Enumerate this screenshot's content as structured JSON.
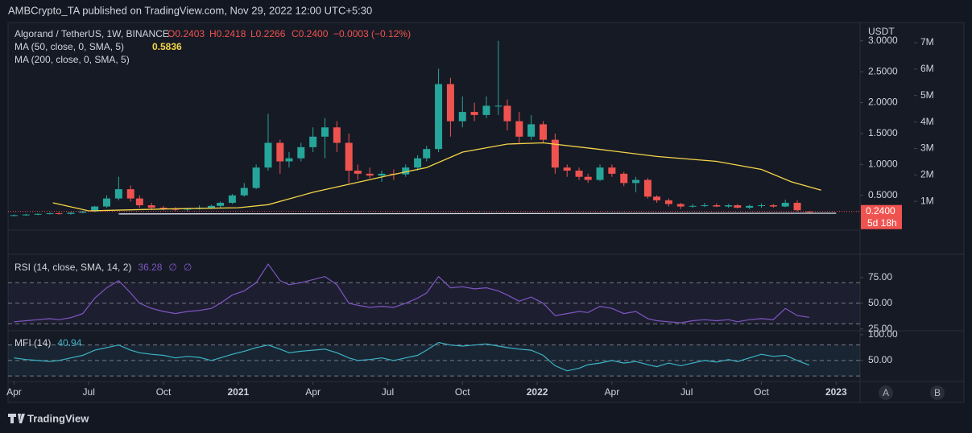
{
  "header": {
    "publisher": "AMBCrypto_TA published on TradingView.com, Nov 29, 2022 12:00 UTC+5:30",
    "brand": "TradingView",
    "buttons": [
      "A",
      "B"
    ]
  },
  "chart_data": [
    {
      "type": "candlestick",
      "title": "Algorand / TetherUS, 1W, BINANCE",
      "ohlc_legend": [
        "O0.2403",
        "H0.2418",
        "L0.2266",
        "C0.2400"
      ],
      "change": "−0.0003 (−0.12%)",
      "up_color": "#26a69a",
      "down_color": "#ef5350",
      "x": [
        2020.25,
        2020.29,
        2020.33,
        2020.37,
        2020.4,
        2020.44,
        2020.48,
        2020.52,
        2020.56,
        2020.6,
        2020.64,
        2020.67,
        2020.71,
        2020.75,
        2020.79,
        2020.83,
        2020.87,
        2020.91,
        2020.94,
        2020.98,
        2021.02,
        2021.06,
        2021.1,
        2021.14,
        2021.17,
        2021.21,
        2021.25,
        2021.29,
        2021.33,
        2021.37,
        2021.4,
        2021.44,
        2021.48,
        2021.52,
        2021.56,
        2021.6,
        2021.63,
        2021.67,
        2021.71,
        2021.75,
        2021.79,
        2021.83,
        2021.87,
        2021.9,
        2021.94,
        2021.98,
        2022.02,
        2022.06,
        2022.1,
        2022.14,
        2022.17,
        2022.21,
        2022.25,
        2022.29,
        2022.33,
        2022.37,
        2022.4,
        2022.44,
        2022.48,
        2022.52,
        2022.56,
        2022.6,
        2022.64,
        2022.67,
        2022.71,
        2022.75,
        2022.79,
        2022.83,
        2022.87,
        2022.91
      ],
      "open": [
        0.17,
        0.18,
        0.19,
        0.2,
        0.21,
        0.2,
        0.22,
        0.24,
        0.32,
        0.45,
        0.6,
        0.45,
        0.34,
        0.3,
        0.28,
        0.27,
        0.29,
        0.3,
        0.33,
        0.38,
        0.5,
        0.62,
        0.95,
        1.35,
        1.05,
        1.1,
        1.28,
        1.45,
        1.6,
        1.35,
        0.9,
        0.85,
        0.82,
        0.85,
        0.84,
        0.95,
        1.1,
        1.25,
        2.3,
        1.7,
        1.85,
        1.8,
        1.95,
        1.95,
        1.7,
        1.45,
        1.65,
        1.4,
        0.95,
        0.9,
        0.8,
        0.75,
        0.95,
        0.85,
        0.7,
        0.75,
        0.48,
        0.42,
        0.36,
        0.32,
        0.33,
        0.34,
        0.32,
        0.34,
        0.3,
        0.33,
        0.34,
        0.32,
        0.38,
        0.2403
      ],
      "high": [
        0.19,
        0.2,
        0.21,
        0.22,
        0.23,
        0.23,
        0.25,
        0.33,
        0.5,
        0.8,
        0.66,
        0.5,
        0.38,
        0.33,
        0.31,
        0.3,
        0.34,
        0.35,
        0.4,
        0.52,
        0.7,
        1.0,
        1.82,
        1.4,
        1.2,
        1.35,
        1.6,
        1.75,
        1.7,
        1.5,
        1.0,
        0.95,
        0.9,
        0.92,
        1.0,
        1.15,
        1.3,
        2.55,
        2.4,
        2.1,
        2.0,
        2.1,
        3.0,
        2.05,
        1.85,
        1.8,
        1.7,
        1.5,
        1.0,
        0.95,
        0.85,
        1.0,
        1.0,
        0.88,
        0.8,
        0.78,
        0.5,
        0.45,
        0.38,
        0.36,
        0.38,
        0.37,
        0.36,
        0.36,
        0.35,
        0.37,
        0.36,
        0.43,
        0.42,
        0.2418
      ],
      "low": [
        0.16,
        0.17,
        0.18,
        0.19,
        0.19,
        0.19,
        0.21,
        0.23,
        0.3,
        0.42,
        0.4,
        0.3,
        0.28,
        0.26,
        0.25,
        0.24,
        0.27,
        0.28,
        0.3,
        0.36,
        0.48,
        0.6,
        0.9,
        0.85,
        0.95,
        1.05,
        1.2,
        1.1,
        1.2,
        0.7,
        0.75,
        0.78,
        0.72,
        0.75,
        0.8,
        0.9,
        1.05,
        1.2,
        1.45,
        1.6,
        1.7,
        1.75,
        1.8,
        1.55,
        1.35,
        1.4,
        1.35,
        0.85,
        0.8,
        0.75,
        0.7,
        0.73,
        0.8,
        0.65,
        0.55,
        0.45,
        0.38,
        0.32,
        0.28,
        0.3,
        0.31,
        0.31,
        0.3,
        0.29,
        0.28,
        0.3,
        0.3,
        0.31,
        0.24,
        0.2266
      ],
      "close": [
        0.18,
        0.19,
        0.2,
        0.21,
        0.2,
        0.22,
        0.24,
        0.32,
        0.45,
        0.6,
        0.45,
        0.34,
        0.3,
        0.28,
        0.27,
        0.29,
        0.3,
        0.33,
        0.38,
        0.5,
        0.62,
        0.95,
        1.35,
        1.05,
        1.1,
        1.28,
        1.45,
        1.6,
        1.35,
        0.9,
        0.85,
        0.82,
        0.85,
        0.84,
        0.95,
        1.1,
        1.25,
        2.3,
        1.7,
        1.85,
        1.8,
        1.95,
        1.95,
        1.7,
        1.45,
        1.65,
        1.4,
        0.95,
        0.9,
        0.8,
        0.75,
        0.95,
        0.85,
        0.7,
        0.75,
        0.48,
        0.42,
        0.36,
        0.32,
        0.33,
        0.34,
        0.32,
        0.34,
        0.3,
        0.33,
        0.34,
        0.32,
        0.38,
        0.26,
        0.24
      ],
      "indicators": [
        {
          "name": "MA (50, close, 0, SMA, 5)",
          "color": "#f5d547",
          "x": [
            2020.38,
            2020.5,
            2020.75,
            2021.0,
            2021.1,
            2021.25,
            2021.5,
            2021.63,
            2021.75,
            2021.9,
            2022.02,
            2022.2,
            2022.4,
            2022.6,
            2022.75,
            2022.85,
            2022.95
          ],
          "values": [
            0.38,
            0.25,
            0.28,
            0.3,
            0.35,
            0.55,
            0.82,
            0.95,
            1.2,
            1.33,
            1.35,
            1.25,
            1.13,
            1.05,
            0.92,
            0.72,
            0.5836
          ]
        },
        {
          "name": "MA (200, close, 0, SMA, 5)",
          "color": "#e0e3eb",
          "x": [
            2020.6,
            2023.0
          ],
          "values": [
            0.2,
            0.21
          ]
        }
      ],
      "last_price": {
        "value": 0.24,
        "label": "0.2400",
        "countdown": "5d 18h"
      },
      "y_axis_unit": "USDT",
      "ylim": [
        -0.05,
        3.27
      ],
      "yticks": [
        {
          "value": 0.5,
          "label": "0.5000"
        },
        {
          "value": 1,
          "label": "1.0000"
        },
        {
          "value": 1.5,
          "label": "1.5000"
        },
        {
          "value": 2,
          "label": "2.0000"
        },
        {
          "value": 2.5,
          "label": "2.5000"
        },
        {
          "value": 3,
          "label": "3.0000"
        }
      ],
      "y2lim": [
        -30000,
        7700000
      ],
      "y2ticks": [
        {
          "value": 1000000,
          "label": "1M"
        },
        {
          "value": 2000000,
          "label": "2M"
        },
        {
          "value": 3000000,
          "label": "3M"
        },
        {
          "value": 4000000,
          "label": "4M"
        },
        {
          "value": 5000000,
          "label": "5M"
        },
        {
          "value": 6000000,
          "label": "6M"
        },
        {
          "value": 7000000,
          "label": "7M"
        }
      ],
      "xlim": [
        2020.23,
        2023.08
      ],
      "xticks": [
        {
          "value": 2020.25,
          "label": "Apr"
        },
        {
          "value": 2020.5,
          "label": "Jul"
        },
        {
          "value": 2020.75,
          "label": "Oct"
        },
        2021,
        {
          "value": 2021.25,
          "label": "Apr"
        },
        {
          "value": 2021.5,
          "label": "Jul"
        },
        {
          "value": 2021.75,
          "label": "Oct"
        },
        2022,
        {
          "value": 2022.25,
          "label": "Apr"
        },
        {
          "value": 2022.5,
          "label": "Jul"
        },
        {
          "value": 2022.75,
          "label": "Oct"
        },
        2023
      ]
    },
    {
      "type": "line",
      "name": "RSI (14, close, SMA, 14, 2)",
      "extra_labels": [
        "∅",
        "∅"
      ],
      "color": "#7e57c2",
      "values": [
        32,
        33,
        34,
        35,
        34,
        36,
        40,
        55,
        65,
        72,
        60,
        50,
        45,
        42,
        40,
        42,
        43,
        45,
        50,
        58,
        62,
        70,
        88,
        72,
        68,
        70,
        73,
        76,
        68,
        50,
        48,
        46,
        47,
        46,
        50,
        55,
        60,
        76,
        65,
        66,
        64,
        65,
        62,
        58,
        52,
        56,
        50,
        38,
        40,
        42,
        41,
        47,
        45,
        40,
        42,
        35,
        33,
        32,
        31,
        33,
        34,
        33,
        34,
        32,
        34,
        35,
        34,
        45,
        38,
        36.28
      ],
      "band_lines": [
        70,
        50,
        30
      ],
      "ylim": [
        24,
        96
      ],
      "yticks": [
        {
          "value": 75,
          "label": "75.00"
        },
        {
          "value": 50,
          "label": "50.00"
        },
        {
          "value": 25,
          "label": "25.00"
        }
      ]
    },
    {
      "type": "line",
      "name": "MFI (14)",
      "color": "#3cb4c8",
      "values": [
        55,
        52,
        50,
        48,
        50,
        55,
        60,
        70,
        75,
        80,
        70,
        65,
        62,
        60,
        55,
        58,
        56,
        50,
        55,
        62,
        68,
        75,
        80,
        72,
        65,
        68,
        70,
        72,
        65,
        55,
        50,
        52,
        55,
        50,
        55,
        60,
        70,
        85,
        80,
        78,
        80,
        82,
        78,
        75,
        72,
        70,
        60,
        40,
        30,
        35,
        42,
        45,
        50,
        45,
        48,
        42,
        38,
        45,
        40,
        45,
        50,
        47,
        52,
        48,
        55,
        62,
        58,
        60,
        50,
        40.94
      ],
      "band_lines": [
        80,
        50,
        20
      ],
      "ylim": [
        12.5,
        106
      ],
      "yticks": [
        {
          "value": 100,
          "label": "100.00"
        },
        {
          "value": 50,
          "label": "50.00"
        }
      ]
    }
  ]
}
